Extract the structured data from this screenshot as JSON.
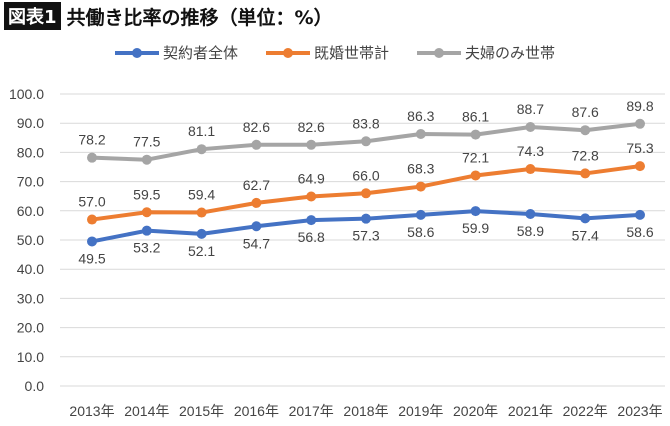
{
  "header": {
    "badge": "図表1",
    "title": "共働き比率の推移（単位：%）"
  },
  "chart_data": {
    "type": "line",
    "title": "共働き比率の推移（単位：%）",
    "categories": [
      "2013年",
      "2014年",
      "2015年",
      "2016年",
      "2017年",
      "2018年",
      "2019年",
      "2020年",
      "2021年",
      "2022年",
      "2023年"
    ],
    "ylim": [
      0,
      100
    ],
    "yticks": [
      "0.0",
      "10.0",
      "20.0",
      "30.0",
      "40.0",
      "50.0",
      "60.0",
      "70.0",
      "80.0",
      "90.0",
      "100.0"
    ],
    "grid": true,
    "legend": "top",
    "series": [
      {
        "name": "契約者全体",
        "color": "#4472c4",
        "label_pos": "below",
        "values": [
          49.5,
          53.2,
          52.1,
          54.7,
          56.8,
          57.3,
          58.6,
          59.9,
          58.9,
          57.4,
          58.6
        ]
      },
      {
        "name": "既婚世帯計",
        "color": "#ed7d31",
        "label_pos": "above",
        "values": [
          57.0,
          59.5,
          59.4,
          62.7,
          64.9,
          66.0,
          68.3,
          72.1,
          74.3,
          72.8,
          75.3
        ]
      },
      {
        "name": "夫婦のみ世帯",
        "color": "#a5a5a5",
        "label_pos": "above",
        "values": [
          78.2,
          77.5,
          81.1,
          82.6,
          82.6,
          83.8,
          86.3,
          86.1,
          88.7,
          87.6,
          89.8
        ]
      }
    ]
  }
}
